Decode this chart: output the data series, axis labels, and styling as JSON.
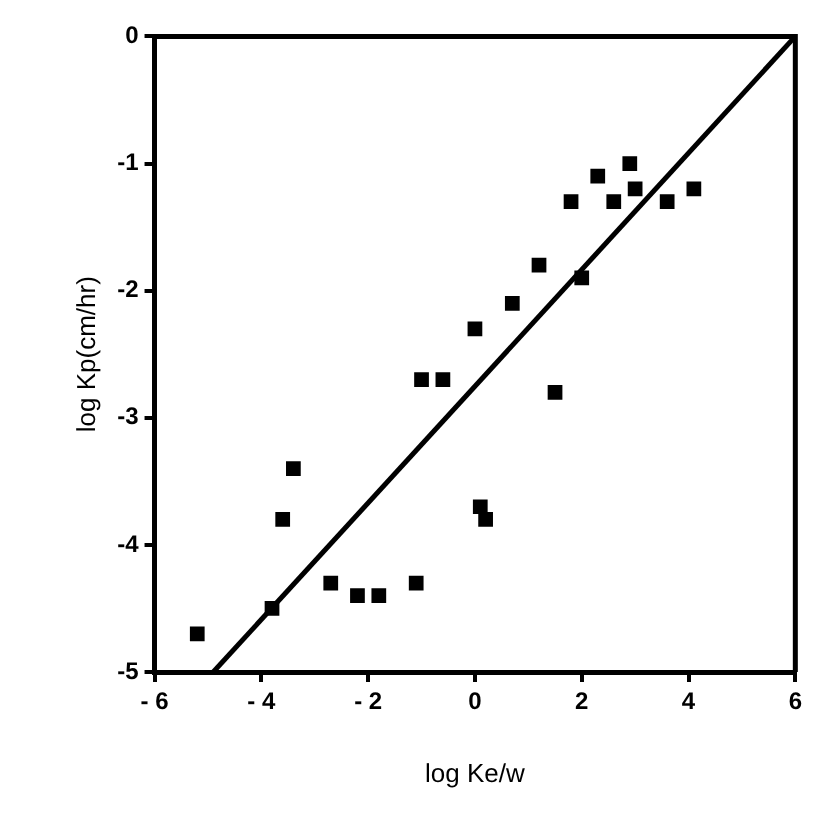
{
  "chart_data": {
    "type": "scatter",
    "xlabel": "log Ke/w",
    "ylabel": "log Kp(cm/hr)",
    "xlim": [
      -6,
      6
    ],
    "ylim": [
      -5,
      0
    ],
    "xticks": [
      {
        "value": -6,
        "label": "- 6"
      },
      {
        "value": -4,
        "label": "- 4"
      },
      {
        "value": -2,
        "label": "- 2"
      },
      0,
      2,
      4,
      6
    ],
    "yticks": [
      -5,
      -4,
      -3,
      -2,
      -1,
      0
    ],
    "grid": false,
    "legend": false,
    "series": [
      {
        "marker": "square",
        "color": "#000000",
        "x": [
          -5.2,
          -3.8,
          -3.6,
          -3.4,
          -2.7,
          -2.2,
          -1.8,
          -1.1,
          -1.0,
          -0.6,
          0.0,
          0.1,
          0.2,
          0.7,
          1.2,
          1.5,
          1.8,
          2.0,
          2.3,
          2.6,
          2.9,
          3.0,
          3.6,
          4.1
        ],
        "values": [
          -4.7,
          -4.5,
          -3.8,
          -3.4,
          -4.3,
          -4.4,
          -4.4,
          -4.3,
          -2.7,
          -2.7,
          -2.3,
          -3.7,
          -3.8,
          -2.1,
          -1.8,
          -2.8,
          -1.3,
          -1.9,
          -1.1,
          -1.3,
          -1.0,
          -1.2,
          -1.3,
          -1.2
        ]
      },
      {
        "type": "line",
        "marker": "none",
        "color": "#000000",
        "x": [
          -4.9,
          6
        ],
        "values": [
          -5,
          0
        ]
      }
    ]
  }
}
